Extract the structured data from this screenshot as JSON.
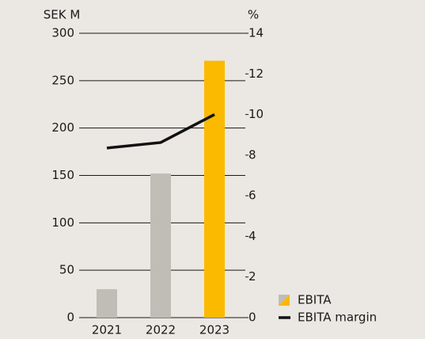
{
  "chart_data": {
    "type": "bar",
    "y_label": "SEK M",
    "y2_label": "%",
    "categories": [
      "2021",
      "2022",
      "2023"
    ],
    "series": [
      {
        "name": "EBITA",
        "type": "bar",
        "colors": [
          "#c0bcb6",
          "#c0bcb6",
          "#fbb900"
        ],
        "values": [
          30,
          152,
          271
        ]
      },
      {
        "name": "EBITA margin",
        "type": "line",
        "axis": "y2",
        "color": "#111111",
        "values": [
          8.35,
          8.62,
          10.0
        ]
      }
    ],
    "ylim": [
      0,
      300
    ],
    "yticks": [
      0,
      50,
      100,
      150,
      200,
      250,
      300
    ],
    "y2lim": [
      0,
      14
    ],
    "y2ticks": [
      0,
      2,
      4,
      6,
      8,
      10,
      12,
      14
    ],
    "grid": true,
    "legend": "bottom-right"
  }
}
